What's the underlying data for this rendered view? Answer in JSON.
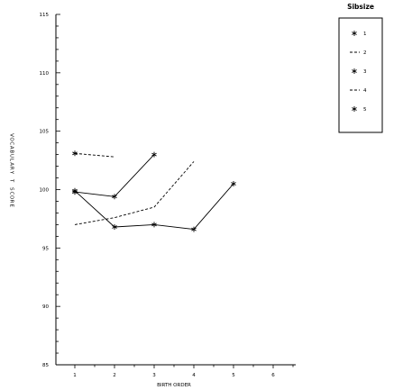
{
  "chart_data": {
    "type": "line",
    "title": "",
    "xlabel": "BIRTH ORDER",
    "ylabel": "VOCABULARY T SCORE",
    "xlim": [
      0.5,
      6.5
    ],
    "ylim": [
      85,
      115
    ],
    "x_ticks": [
      1,
      2,
      3,
      4,
      5,
      6
    ],
    "y_ticks": [
      85,
      90,
      95,
      100,
      105,
      110,
      115
    ],
    "legend": {
      "title": "Sibsize",
      "position": "top-right",
      "entries": [
        "1",
        "2",
        "3",
        "4",
        "5"
      ]
    },
    "series": [
      {
        "name": "1",
        "style": "solid-star",
        "points": [
          [
            1,
            99.8
          ]
        ]
      },
      {
        "name": "2",
        "style": "dashed",
        "points": [
          [
            1,
            103.1
          ],
          [
            2,
            102.8
          ]
        ]
      },
      {
        "name": "3",
        "style": "solid-star",
        "points": [
          [
            1,
            99.8
          ],
          [
            2,
            99.4
          ],
          [
            3,
            103.0
          ]
        ]
      },
      {
        "name": "4",
        "style": "dashed",
        "points": [
          [
            1,
            97.0
          ],
          [
            2,
            97.6
          ],
          [
            3,
            98.5
          ],
          [
            4,
            102.4
          ]
        ]
      },
      {
        "name": "5",
        "style": "solid-star",
        "points": [
          [
            1,
            99.9
          ],
          [
            2,
            96.8
          ],
          [
            3,
            97.0
          ],
          [
            4,
            96.6
          ],
          [
            5,
            100.5
          ]
        ]
      }
    ]
  }
}
